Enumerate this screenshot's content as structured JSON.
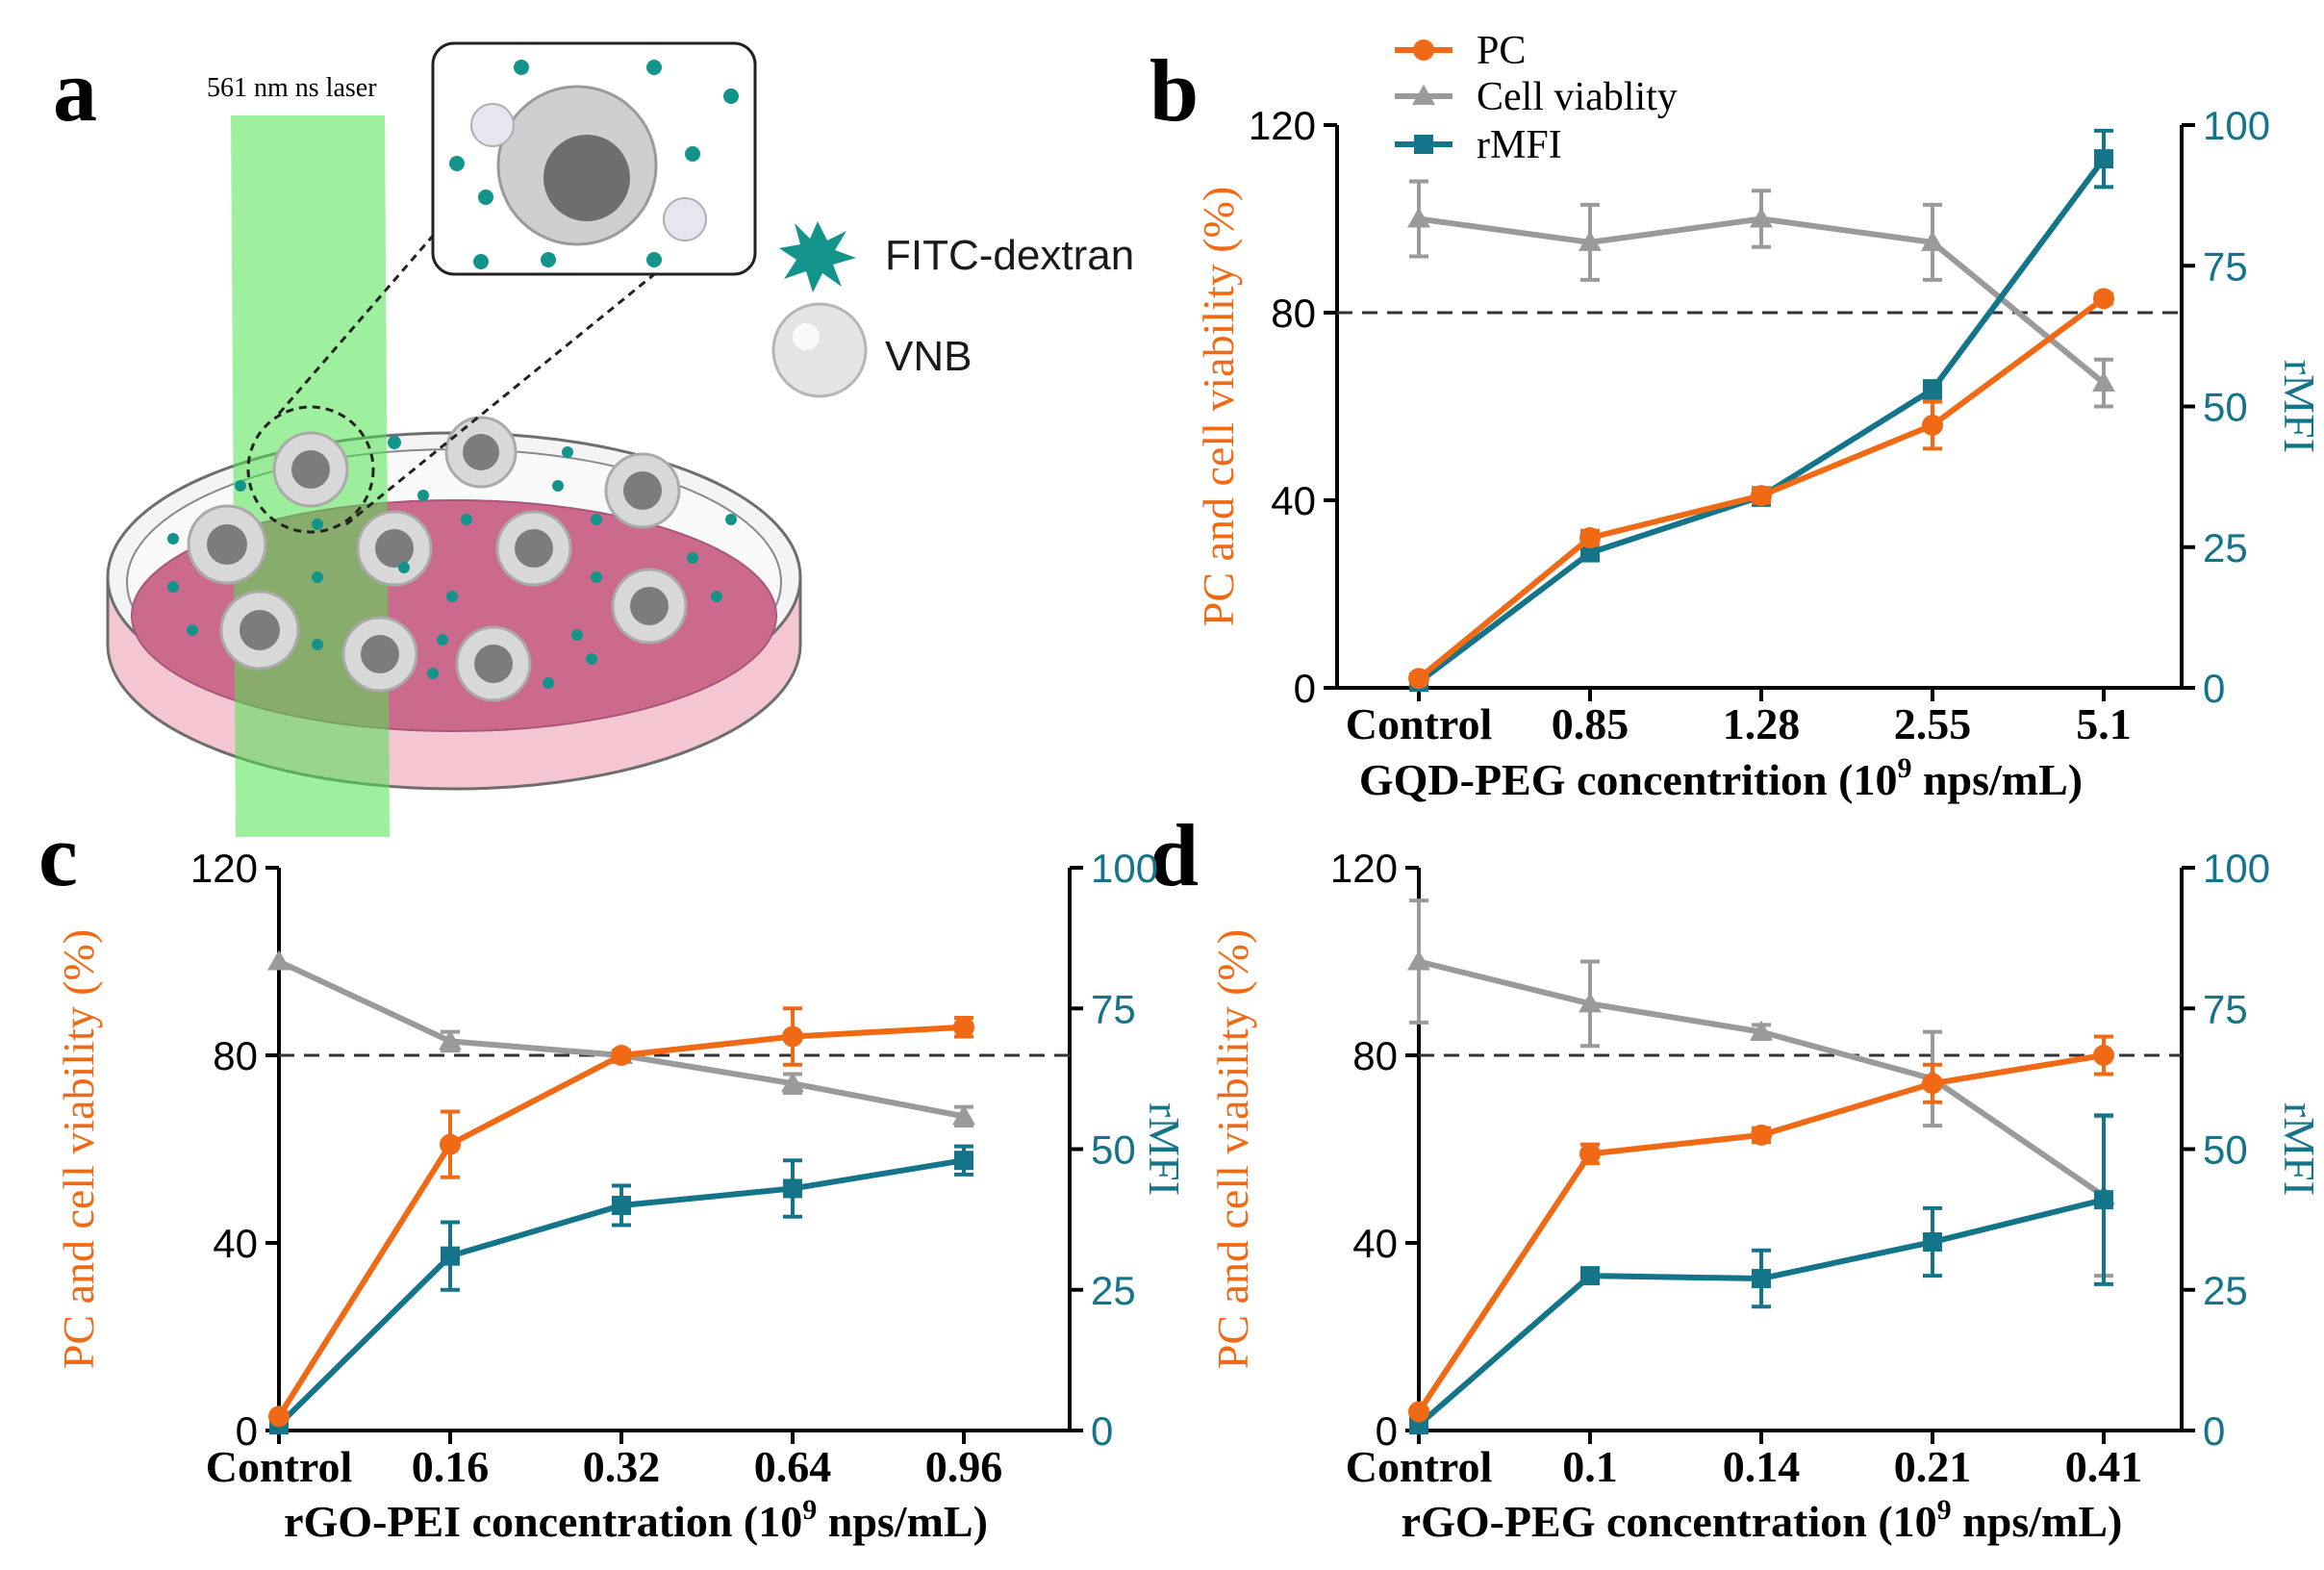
{
  "panel_labels": {
    "a": "a",
    "b": "b",
    "c": "c",
    "d": "d"
  },
  "schematic": {
    "laser_label": "561 nm ns laser",
    "legend_fitc": "FITC-dextran",
    "legend_vnb": "VNB"
  },
  "legend": {
    "pc": "PC",
    "viability": "Cell viablity",
    "rmfi": "rMFI"
  },
  "colors": {
    "pc": "#f06a16",
    "viability": "#9a9a9a",
    "rmfi": "#13748a",
    "threshold": "#333333"
  },
  "chart_data": [
    {
      "panel": "b",
      "type": "line",
      "categories": [
        "Control",
        "0.85",
        "1.28",
        "2.55",
        "5.1"
      ],
      "xlabel": "GQD-PEG concentrition (10",
      "xlabel_sup": "9",
      "xlabel_end": " nps/mL)",
      "ylabel_left": "PC and cell viability (%)",
      "ylabel_right": "rMFI",
      "ylim_left": [
        0,
        120
      ],
      "ylim_right": [
        0,
        100
      ],
      "yticks_left": [
        "0",
        "40",
        "80",
        "120"
      ],
      "yticks_right": [
        "0",
        "25",
        "50",
        "75",
        "100"
      ],
      "threshold": 80,
      "grid": false,
      "series": [
        {
          "name": "PC",
          "axis": "left",
          "marker": "circle",
          "values": [
            2,
            32,
            41,
            56,
            83
          ],
          "err": [
            0,
            1.5,
            1.5,
            5,
            1
          ]
        },
        {
          "name": "Cell viablity",
          "axis": "left",
          "marker": "triangle",
          "values": [
            100,
            95,
            100,
            95,
            65
          ],
          "err": [
            8,
            8,
            6,
            8,
            5
          ]
        },
        {
          "name": "rMFI",
          "axis": "right",
          "marker": "square",
          "values": [
            1,
            24,
            34,
            53,
            94
          ],
          "err": [
            0,
            1,
            1.5,
            1.5,
            5
          ]
        }
      ]
    },
    {
      "panel": "c",
      "type": "line",
      "categories": [
        "Control",
        "0.16",
        "0.32",
        "0.64",
        "0.96"
      ],
      "xlabel": "rGO-PEI concentration (10",
      "xlabel_sup": "9",
      "xlabel_end": " nps/mL)",
      "ylabel_left": "PC and cell viability (%)",
      "ylabel_right": "rMFI",
      "ylim_left": [
        0,
        120
      ],
      "ylim_right": [
        0,
        100
      ],
      "yticks_left": [
        "0",
        "40",
        "80",
        "120"
      ],
      "yticks_right": [
        "0",
        "25",
        "50",
        "75",
        "100"
      ],
      "threshold": 80,
      "grid": false,
      "series": [
        {
          "name": "PC",
          "axis": "left",
          "marker": "circle",
          "values": [
            3,
            61,
            80,
            84,
            86
          ],
          "err": [
            0,
            7,
            1,
            6,
            2
          ]
        },
        {
          "name": "Cell viablity",
          "axis": "left",
          "marker": "triangle",
          "values": [
            100,
            83,
            80,
            74,
            67
          ],
          "err": [
            0,
            2,
            1,
            2,
            2
          ]
        },
        {
          "name": "rMFI",
          "axis": "right",
          "marker": "square",
          "values": [
            1,
            31,
            40,
            43,
            48
          ],
          "err": [
            0,
            6,
            3.5,
            5,
            2.5
          ]
        }
      ]
    },
    {
      "panel": "d",
      "type": "line",
      "categories": [
        "Control",
        "0.1",
        "0.14",
        "0.21",
        "0.41"
      ],
      "xlabel": "rGO-PEG concentration (10",
      "xlabel_sup": "9",
      "xlabel_end": " nps/mL)",
      "ylabel_left": "PC and cell viability (%)",
      "ylabel_right": "rMFI",
      "ylim_left": [
        0,
        120
      ],
      "ylim_right": [
        0,
        100
      ],
      "yticks_left": [
        "0",
        "40",
        "80",
        "120"
      ],
      "yticks_right": [
        "0",
        "25",
        "50",
        "75",
        "100"
      ],
      "threshold": 80,
      "grid": false,
      "series": [
        {
          "name": "PC",
          "axis": "left",
          "marker": "circle",
          "values": [
            4,
            59,
            63,
            74,
            80
          ],
          "err": [
            0,
            2,
            1.5,
            4,
            4
          ]
        },
        {
          "name": "Cell viablity",
          "axis": "left",
          "marker": "triangle",
          "values": [
            100,
            91,
            85,
            75,
            50
          ],
          "err": [
            13,
            9,
            1.5,
            10,
            17
          ]
        },
        {
          "name": "rMFI",
          "axis": "right",
          "marker": "square",
          "values": [
            1,
            27.5,
            27,
            33.5,
            41
          ],
          "err": [
            0,
            1,
            5,
            6,
            15
          ]
        }
      ]
    }
  ]
}
